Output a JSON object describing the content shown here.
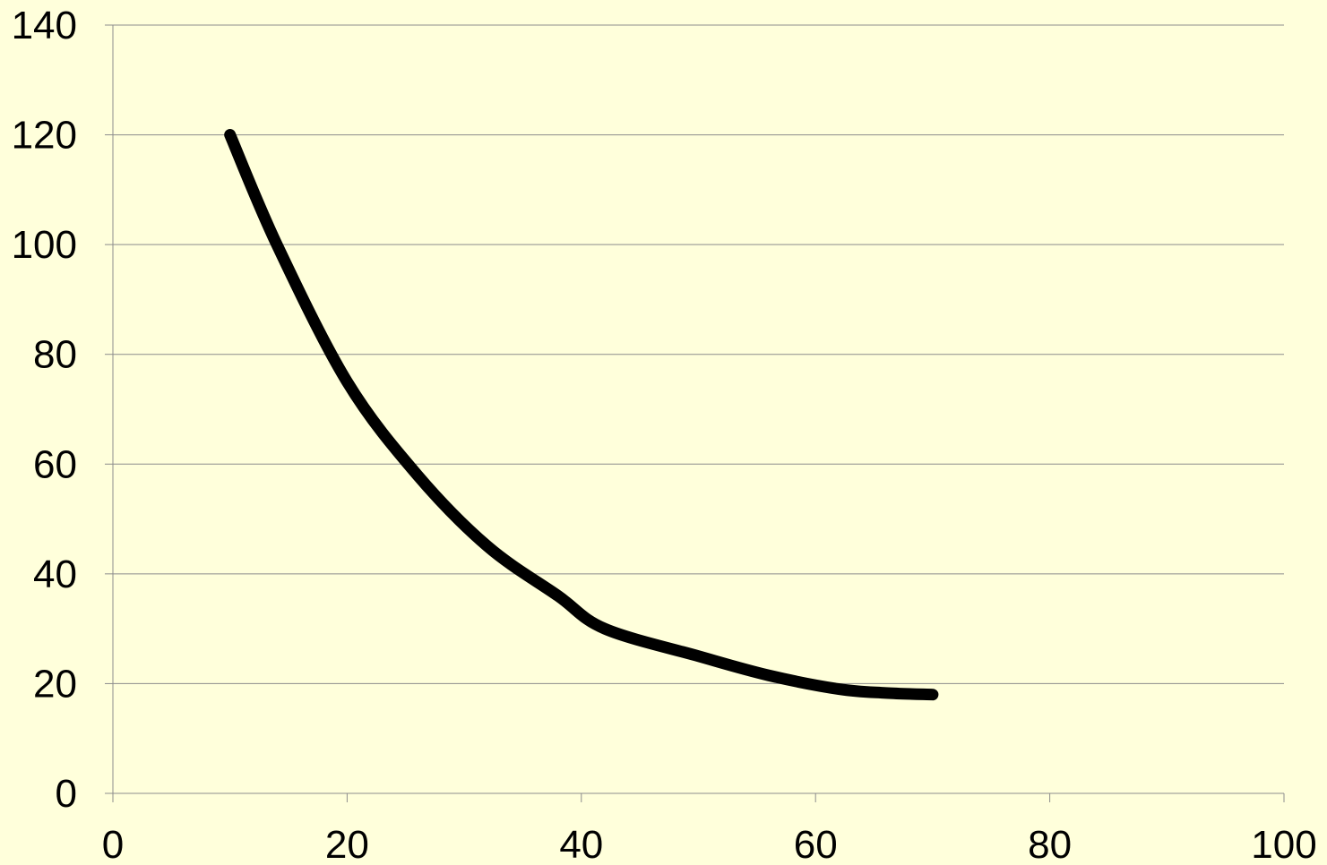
{
  "chart_data": {
    "type": "line",
    "title": "",
    "xlabel": "",
    "ylabel": "",
    "xlim": [
      0,
      100
    ],
    "ylim": [
      0,
      140
    ],
    "x_ticks": [
      0,
      20,
      40,
      60,
      80,
      100
    ],
    "y_ticks": [
      0,
      20,
      40,
      60,
      80,
      100,
      120,
      140
    ],
    "x_tick_labels": [
      "0",
      "20",
      "40",
      "60",
      "80",
      "100"
    ],
    "y_tick_labels": [
      "0",
      "20",
      "40",
      "60",
      "80",
      "100",
      "120",
      "140"
    ],
    "grid": "horizontal",
    "legend": "none",
    "series": [
      {
        "x": [
          10,
          14,
          20,
          26,
          32,
          38,
          42,
          50,
          56,
          62,
          66,
          70
        ],
        "y": [
          120,
          100,
          75,
          58,
          45,
          36,
          30,
          25,
          21.5,
          19,
          18.3,
          18
        ],
        "color": "#000000"
      }
    ]
  },
  "colors": {
    "background": "#FFFFDB",
    "gridline": "#8C8C8C",
    "axis": "#8C8C8C",
    "series": "#000000",
    "text": "#000000"
  }
}
